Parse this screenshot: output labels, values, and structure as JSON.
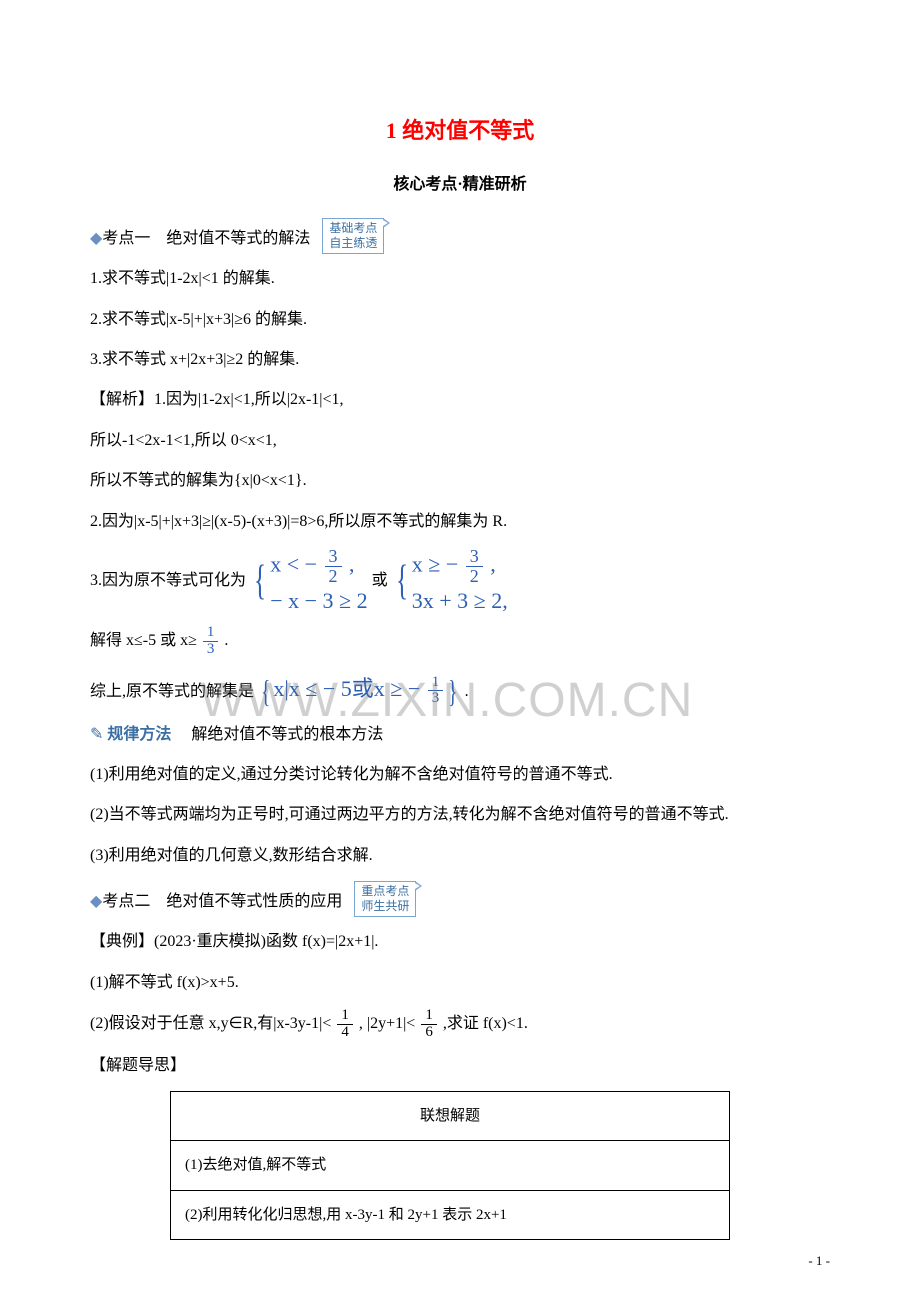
{
  "title": "1 绝对值不等式",
  "subtitle": "核心考点·精准研析",
  "section1": {
    "diamond": "◆",
    "label": "考点一　绝对值不等式的解法",
    "tag_line1": "基础考点",
    "tag_line2": "自主练透"
  },
  "q1": "1.求不等式|1-2x|<1 的解集.",
  "q2": "2.求不等式|x-5|+|x+3|≥6 的解集.",
  "q3": "3.求不等式 x+|2x+3|≥2 的解集.",
  "a1a": "【解析】1.因为|1-2x|<1,所以|2x-1|<1,",
  "a1b": "所以-1<2x-1<1,所以 0<x<1,",
  "a1c": "所以不等式的解集为{x|0<x<1}.",
  "a2": "2.因为|x-5|+|x+3|≥|(x-5)-(x+3)|=8>6,所以原不等式的解集为 R.",
  "a3_pre": "3.因为原不等式可化为",
  "sys1_top_a": "x <  − ",
  "sys1_top_b": ",",
  "sys1_bot": " − x − 3 ≥ 2",
  "or": "或",
  "sys2_top_a": "x ≥  − ",
  "sys2_top_b": ",",
  "sys2_bot": "3x + 3 ≥ 2,",
  "frac32_n": "3",
  "frac32_d": "2",
  "a3r_pre": "解得 x≤-5 或 x≥",
  "a3r_post": ".",
  "frac13_n": "1",
  "frac13_d": "3",
  "a3s_pre": "综上,原不等式的解集是",
  "setexpr_a": "x|x ≤  − 5或x ≥  − ",
  "a3s_post": ".",
  "method_icon": "✎",
  "method_label": "规律方法",
  "method_title": "　解绝对值不等式的根本方法",
  "m1": "(1)利用绝对值的定义,通过分类讨论转化为解不含绝对值符号的普通不等式.",
  "m2": "(2)当不等式两端均为正号时,可通过两边平方的方法,转化为解不含绝对值符号的普通不等式.",
  "m3": "(3)利用绝对值的几何意义,数形结合求解.",
  "section2": {
    "diamond": "◆",
    "label": "考点二　绝对值不等式性质的应用",
    "tag_line1": "重点考点",
    "tag_line2": "师生共研"
  },
  "ex_label": "【典例】(2023·重庆模拟)函数 f(x)=|2x+1|.",
  "ex1": "(1)解不等式 f(x)>x+5.",
  "ex2_a": "(2)假设对于任意 x,y∈R,有|x-3y-1|<",
  "ex2_b": ", |2y+1|<",
  "ex2_c": ",求证 f(x)<1.",
  "frac14_n": "1",
  "frac14_d": "4",
  "frac16_n": "1",
  "frac16_d": "6",
  "guide": "【解题导思】",
  "table_header": "联想解题",
  "table_r1": "(1)去绝对值,解不等式",
  "table_r2": "(2)利用转化化归思想,用 x-3y-1 和 2y+1 表示 2x+1",
  "watermark": "WWW.ZIXIN.COM.CN",
  "pagenum": "- 1 -",
  "colors": {
    "title": "#ff0000",
    "math": "#2b5fb5",
    "tag": "#3b6fa3",
    "text": "#000000",
    "bg": "#ffffff"
  }
}
